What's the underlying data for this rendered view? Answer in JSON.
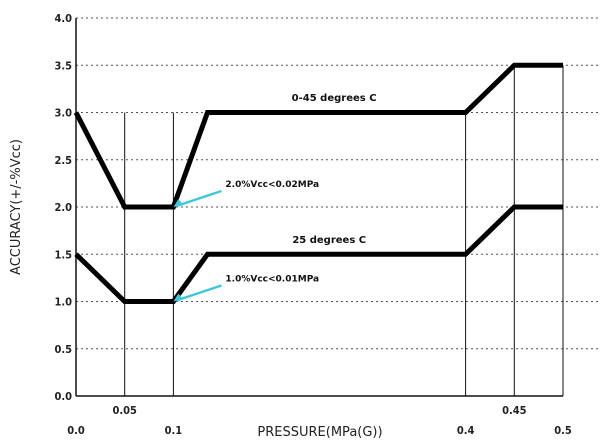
{
  "chart_data": {
    "type": "line",
    "title": "",
    "xlabel": "PRESSURE(MPa(G))",
    "ylabel": "ACCURACY(+/-%Vcc)",
    "xlim": [
      0,
      0.5
    ],
    "ylim": [
      0,
      4.0
    ],
    "x_ticks": [
      {
        "value": 0.0,
        "label": "0.0"
      },
      {
        "value": 0.05,
        "label": "0.05"
      },
      {
        "value": 0.1,
        "label": "0.1"
      },
      {
        "value": 0.4,
        "label": "0.4"
      },
      {
        "value": 0.45,
        "label": "0.45"
      },
      {
        "value": 0.5,
        "label": "0.5"
      }
    ],
    "y_ticks": [
      {
        "value": 0.0,
        "label": "0.0"
      },
      {
        "value": 0.5,
        "label": "0.5"
      },
      {
        "value": 1.0,
        "label": "1.0"
      },
      {
        "value": 1.5,
        "label": "1.5"
      },
      {
        "value": 2.0,
        "label": "2.0"
      },
      {
        "value": 2.5,
        "label": "2.5"
      },
      {
        "value": 3.0,
        "label": "3.0"
      },
      {
        "value": 3.5,
        "label": "3.5"
      },
      {
        "value": 4.0,
        "label": "4.0"
      }
    ],
    "grid": "horizontal dotted",
    "series": [
      {
        "name": "0-45 degrees C",
        "x": [
          0.0,
          0.05,
          0.1,
          0.135,
          0.4,
          0.45,
          0.5
        ],
        "y": [
          3.0,
          2.0,
          2.0,
          3.0,
          3.0,
          3.5,
          3.5
        ]
      },
      {
        "name": "25 degrees C",
        "x": [
          0.0,
          0.05,
          0.1,
          0.135,
          0.4,
          0.45,
          0.5
        ],
        "y": [
          1.5,
          1.0,
          1.0,
          1.5,
          1.5,
          2.0,
          2.0
        ]
      }
    ],
    "annotations": [
      {
        "text": "2.0%Vcc<0.02MPa",
        "x": 0.1,
        "y": 2.0
      },
      {
        "text": "1.0%Vcc<0.01MPa",
        "x": 0.1,
        "y": 1.0
      }
    ],
    "colors": {
      "line": "#000000",
      "arrow": "#3cc8d8",
      "grid": "#555555"
    }
  }
}
